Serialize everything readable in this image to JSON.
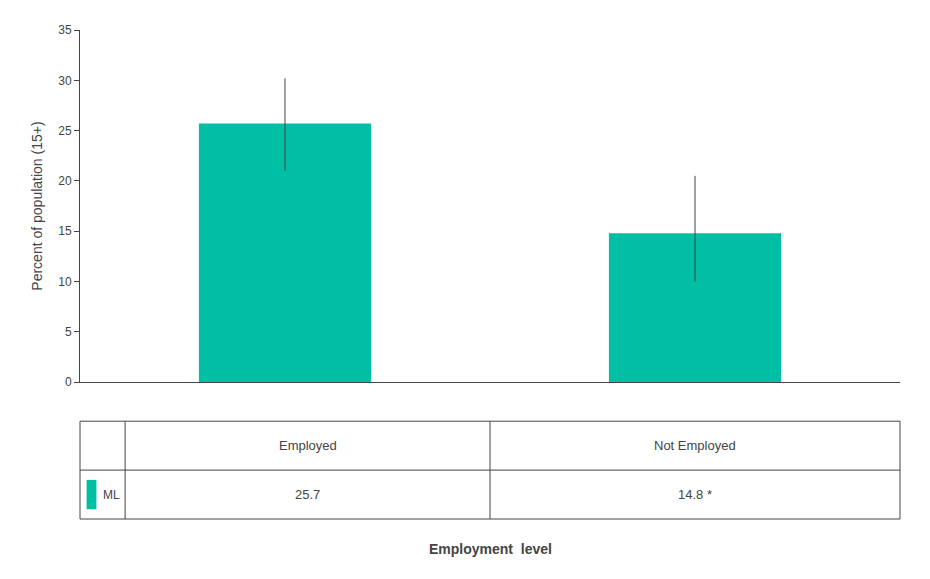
{
  "chart_data": {
    "type": "bar",
    "xlabel": "Employment  level",
    "ylabel": "Percent of population (15+)",
    "categories": [
      "Employed",
      "Not Employed"
    ],
    "series": [
      {
        "name": "ML",
        "color": "#00BFA5",
        "values": [
          25.7,
          14.8
        ],
        "value_labels": [
          "25.7",
          "14.8 *"
        ],
        "error_upper": [
          4.5,
          5.7
        ],
        "error_lower": [
          4.7,
          4.8
        ]
      }
    ],
    "ylim": [
      0,
      35
    ],
    "yticks": [
      0,
      5,
      10,
      15,
      20,
      25,
      30,
      35
    ],
    "grid": false,
    "data_labels": true,
    "tick_labels": "y"
  }
}
